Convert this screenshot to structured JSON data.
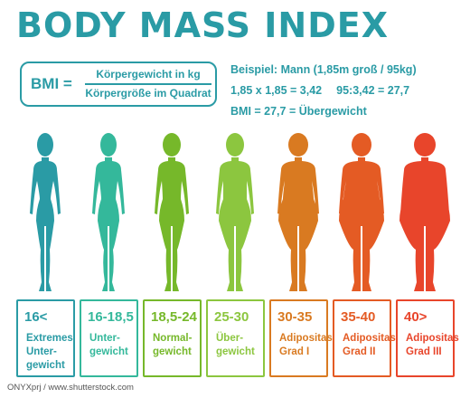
{
  "title": "BODY MASS INDEX",
  "formula": {
    "lhs": "BMI =",
    "numerator": "Körpergewicht in kg",
    "denominator": "Körpergröße im Quadrat"
  },
  "example": {
    "line1": "Beispiel: Mann (1,85m groß / 95kg)",
    "line2a": "1,85 x 1,85 = 3,42",
    "line2b": "95:3,42 = 27,7",
    "line3": "BMI = 27,7 = Übergewicht"
  },
  "categories": [
    {
      "range": "16<",
      "line1": "Extremes",
      "line2": "Unter-",
      "line3": "gewicht",
      "color": "#2a9ba5",
      "silhouette": "female-extremely-thin"
    },
    {
      "range": "16-18,5",
      "line1": "Unter-",
      "line2": "gewicht",
      "line3": "",
      "color": "#34b89b",
      "silhouette": "female-thin"
    },
    {
      "range": "18,5-24",
      "line1": "Normal-",
      "line2": "gewicht",
      "line3": "",
      "color": "#76b82a",
      "silhouette": "female-normal"
    },
    {
      "range": "25-30",
      "line1": "Über-",
      "line2": "gewicht",
      "line3": "",
      "color": "#8cc63f",
      "silhouette": "female-overweight"
    },
    {
      "range": "30-35",
      "line1": "Adipositas",
      "line2": "Grad I",
      "line3": "",
      "color": "#d97a21",
      "silhouette": "female-obese-1"
    },
    {
      "range": "35-40",
      "line1": "Adipositas",
      "line2": "Grad II",
      "line3": "",
      "color": "#e45b24",
      "silhouette": "female-obese-2"
    },
    {
      "range": "40>",
      "line1": "Adipositas",
      "line2": "Grad III",
      "line3": "",
      "color": "#e8452b",
      "silhouette": "female-obese-3"
    }
  ],
  "credit": "ONYXprj / www.shutterstock.com"
}
